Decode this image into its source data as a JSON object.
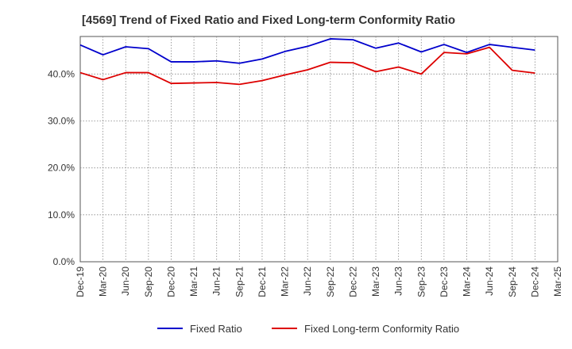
{
  "chart_data": {
    "type": "line",
    "title": "[4569]  Trend of Fixed Ratio and Fixed Long-term Conformity Ratio",
    "xlabel": "",
    "ylabel": "",
    "x": [
      "Dec-19",
      "Mar-20",
      "Jun-20",
      "Sep-20",
      "Dec-20",
      "Mar-21",
      "Jun-21",
      "Sep-21",
      "Dec-21",
      "Mar-22",
      "Jun-22",
      "Sep-22",
      "Dec-22",
      "Mar-23",
      "Jun-23",
      "Sep-23",
      "Dec-23",
      "Mar-24",
      "Jun-24",
      "Sep-24",
      "Dec-24",
      "Mar-25"
    ],
    "x_tick_labels": [
      "Dec-19",
      "Mar-20",
      "Jun-20",
      "Sep-20",
      "Dec-20",
      "Mar-21",
      "Jun-21",
      "Sep-21",
      "Dec-21",
      "Mar-22",
      "Jun-22",
      "Sep-22",
      "Dec-22",
      "Mar-23",
      "Jun-23",
      "Sep-23",
      "Dec-23",
      "Mar-24",
      "Jun-24",
      "Sep-24",
      "Dec-24",
      "Mar-25"
    ],
    "ylim": [
      0,
      48
    ],
    "y_ticks": [
      0,
      10,
      20,
      30,
      40
    ],
    "y_tick_labels": [
      "0.0%",
      "10.0%",
      "20.0%",
      "30.0%",
      "40.0%"
    ],
    "grid": true,
    "legend_position": "bottom",
    "series": [
      {
        "name": "Fixed Ratio",
        "color": "#0000cc",
        "values": [
          46.2,
          44.1,
          45.8,
          45.4,
          42.6,
          42.6,
          42.8,
          42.3,
          43.2,
          44.8,
          45.9,
          47.5,
          47.3,
          45.5,
          46.6,
          44.7,
          46.3,
          44.6,
          46.3,
          45.7,
          45.1,
          null
        ]
      },
      {
        "name": "Fixed Long-term Conformity Ratio",
        "color": "#dd0000",
        "values": [
          40.3,
          38.8,
          40.3,
          40.3,
          38.0,
          38.1,
          38.2,
          37.8,
          38.6,
          39.8,
          40.9,
          42.5,
          42.4,
          40.5,
          41.5,
          40.0,
          44.6,
          44.3,
          45.7,
          40.8,
          40.2,
          null
        ]
      }
    ]
  }
}
